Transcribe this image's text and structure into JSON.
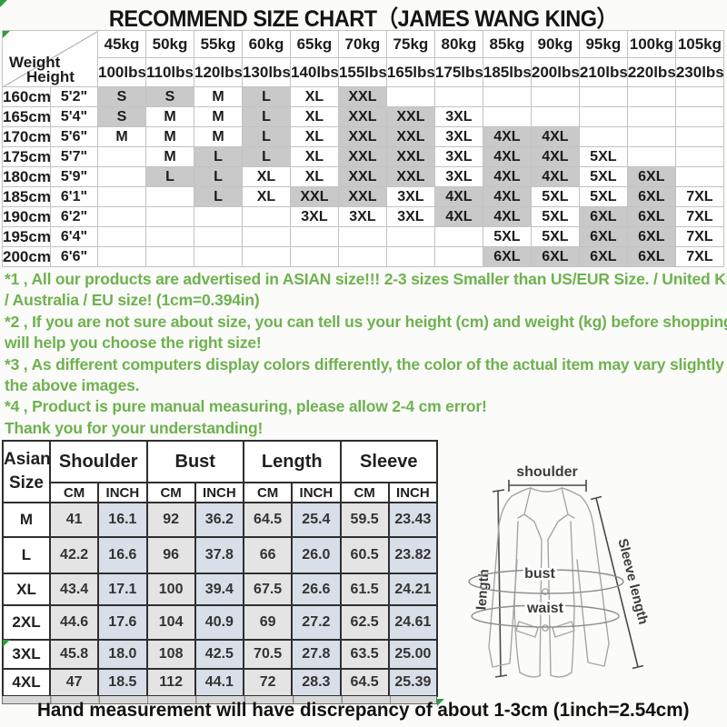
{
  "title": "RECOMMEND SIZE CHART（JAMES WANG KING）",
  "size_chart": {
    "corner_top": "Weight",
    "corner_bottom": "Height",
    "weights_kg": [
      "45kg",
      "50kg",
      "55kg",
      "60kg",
      "65kg",
      "70kg",
      "75kg",
      "80kg",
      "85kg",
      "90kg",
      "95kg",
      "100kg",
      "105kg"
    ],
    "weights_lbs": [
      "100lbs",
      "110lbs",
      "120lbs",
      "130lbs",
      "140lbs",
      "155lbs",
      "165lbs",
      "175lbs",
      "185lbs",
      "200lbs",
      "210lbs",
      "220lbs",
      "230lbs"
    ],
    "shaded_sizes": [
      "S",
      "L",
      "XXL",
      "4XL",
      "6XL"
    ],
    "rows": [
      {
        "cm": "160cm",
        "ft": "5'2\"",
        "sizes": [
          "S",
          "S",
          "M",
          "L",
          "XL",
          "XXL",
          "",
          "",
          "",
          "",
          "",
          "",
          ""
        ]
      },
      {
        "cm": "165cm",
        "ft": "5'4\"",
        "sizes": [
          "S",
          "M",
          "M",
          "L",
          "XL",
          "XXL",
          "XXL",
          "3XL",
          "",
          "",
          "",
          "",
          ""
        ]
      },
      {
        "cm": "170cm",
        "ft": "5'6\"",
        "sizes": [
          "M",
          "M",
          "M",
          "L",
          "XL",
          "XXL",
          "XXL",
          "3XL",
          "4XL",
          "4XL",
          "",
          "",
          ""
        ]
      },
      {
        "cm": "175cm",
        "ft": "5'7\"",
        "sizes": [
          "",
          "M",
          "L",
          "L",
          "XL",
          "XXL",
          "XXL",
          "3XL",
          "4XL",
          "4XL",
          "5XL",
          "",
          ""
        ]
      },
      {
        "cm": "180cm",
        "ft": "5'9\"",
        "sizes": [
          "",
          "L",
          "L",
          "XL",
          "XL",
          "XXL",
          "XXL",
          "3XL",
          "4XL",
          "4XL",
          "5XL",
          "6XL",
          ""
        ]
      },
      {
        "cm": "185cm",
        "ft": "6'1\"",
        "sizes": [
          "",
          "",
          "L",
          "XL",
          "XXL",
          "XXL",
          "3XL",
          "4XL",
          "4XL",
          "5XL",
          "5XL",
          "6XL",
          "7XL"
        ]
      },
      {
        "cm": "190cm",
        "ft": "6'2\"",
        "sizes": [
          "",
          "",
          "",
          "",
          "3XL",
          "3XL",
          "3XL",
          "4XL",
          "4XL",
          "5XL",
          "6XL",
          "6XL",
          "7XL"
        ]
      },
      {
        "cm": "195cm",
        "ft": "6'4\"",
        "sizes": [
          "",
          "",
          "",
          "",
          "",
          "",
          "",
          "",
          "5XL",
          "5XL",
          "6XL",
          "6XL",
          "7XL"
        ]
      },
      {
        "cm": "200cm",
        "ft": "6'6\"",
        "sizes": [
          "",
          "",
          "",
          "",
          "",
          "",
          "",
          "",
          "6XL",
          "6XL",
          "6XL",
          "6XL",
          "7XL"
        ]
      }
    ]
  },
  "notes_lines": [
    "*1 , All our products are advertised in ASIAN size!!! 2-3 sizes Smaller than US/EUR Size. / United Kingdom",
    "/ Australia / EU size! (1cm=0.394in)",
    "*2 , If you are not sure about size, you can tell us your height (cm) and weight (kg) before shopping! We",
    "will help you choose the right size!",
    "*3 , As different computers display colors differently, the color of the actual item may vary slightly from",
    "the above images.",
    "*4 , Product is pure manual measuring, please allow 2-4 cm error!",
    "Thank you for your understanding!"
  ],
  "measure_table": {
    "corner_line1": "Asian",
    "corner_line2": "Size",
    "groups": [
      "Shoulder",
      "Bust",
      "Length",
      "Sleeve"
    ],
    "unit_cm": "CM",
    "unit_inch": "INCH",
    "rows": [
      {
        "size": "M",
        "values": [
          "41",
          "16.1",
          "92",
          "36.2",
          "64.5",
          "25.4",
          "59.5",
          "23.43"
        ]
      },
      {
        "size": "L",
        "values": [
          "42.2",
          "16.6",
          "96",
          "37.8",
          "66",
          "26.0",
          "60.5",
          "23.82"
        ]
      },
      {
        "size": "XL",
        "values": [
          "43.4",
          "17.1",
          "100",
          "39.4",
          "67.5",
          "26.6",
          "61.5",
          "24.21"
        ]
      },
      {
        "size": "2XL",
        "values": [
          "44.6",
          "17.6",
          "104",
          "40.9",
          "69",
          "27.2",
          "62.5",
          "24.61"
        ]
      },
      {
        "size": "3XL",
        "values": [
          "45.8",
          "18.0",
          "108",
          "42.5",
          "70.5",
          "27.8",
          "63.5",
          "25.00"
        ]
      },
      {
        "size": "4XL",
        "values": [
          "47",
          "18.5",
          "112",
          "44.1",
          "72",
          "28.3",
          "64.5",
          "25.39"
        ]
      }
    ]
  },
  "diagram": {
    "shoulder": "shoulder",
    "length": "length",
    "sleeve_length": "Sleeve length",
    "bust": "bust",
    "waist": "waist"
  },
  "footer": "Hand measurement will have discrepancy of about 1-3cm (1inch=2.54cm)",
  "colors": {
    "note_green": "#6fb14f",
    "shaded_cell": "#c9c9c9",
    "cm_fill": "#e4e4e4",
    "inch_fill": "#d9dfe9",
    "corner_flag_green": "#2f9e3e"
  }
}
